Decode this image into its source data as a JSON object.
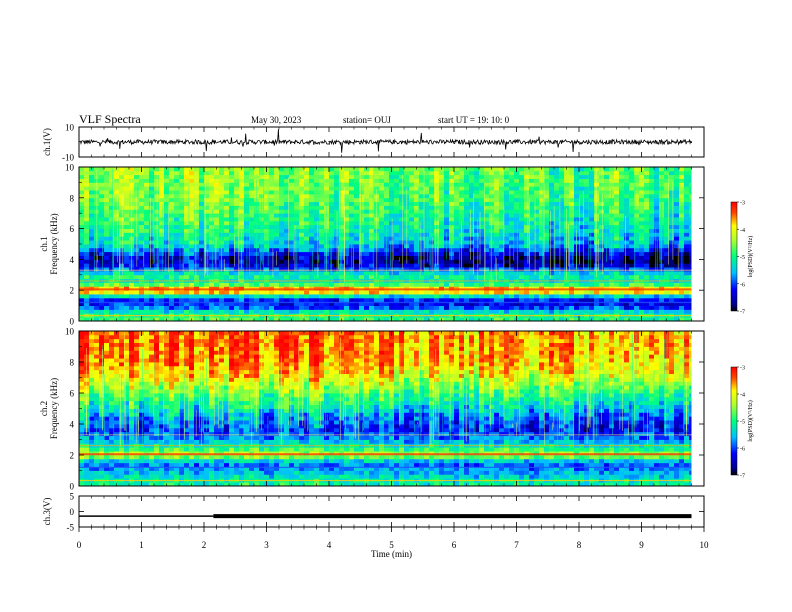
{
  "header": {
    "title": "VLF Spectra",
    "date": "May 30, 2023",
    "station": "station= OUJ",
    "start": "start  UT  =   19: 10: 0"
  },
  "chart_data": [
    {
      "type": "line",
      "panel": "ch1-waveform",
      "ylabel": "ch.1(V)",
      "ylim": [
        -10,
        10
      ],
      "y_ticks": [
        "10",
        "-10"
      ],
      "x": [
        0,
        0.5,
        1,
        1.5,
        2,
        2.5,
        3,
        3.5,
        4,
        4.5,
        5,
        5.5,
        6,
        6.5,
        7,
        7.5,
        8,
        8.5,
        9,
        9.5,
        9.8
      ],
      "y": [
        0,
        0.3,
        -0.2,
        0.4,
        -0.1,
        0.2,
        0.1,
        -0.3,
        0.2,
        0.4,
        -0.2,
        0.1,
        0.3,
        -0.1,
        0.2,
        0.0,
        0.3,
        -0.2,
        0.1,
        0.2,
        0.0
      ],
      "color": "#000000"
    },
    {
      "type": "heatmap",
      "panel": "ch1-spectrogram",
      "ylabel_line1": "ch.1",
      "ylabel_line2": "Frequency (kHz)",
      "ylim": [
        0,
        10
      ],
      "y_ticks": [
        "0",
        "2",
        "4",
        "6",
        "8",
        "10"
      ],
      "xlim": [
        0,
        10
      ],
      "colorbar_label": "log(PSD)(V²/Hz)",
      "colorbar_ticks": [
        "-3",
        "-4",
        "-5",
        "-6",
        "-7"
      ],
      "zlim": [
        -7,
        -3
      ],
      "freq_profile_kHz": [
        0,
        0.5,
        1,
        1.5,
        2,
        2.5,
        3,
        3.5,
        4,
        4.5,
        5,
        6,
        7,
        8,
        9,
        10
      ],
      "log_psd_typical": [
        -4.8,
        -5.0,
        -6.2,
        -6.0,
        -3.2,
        -5.2,
        -5.0,
        -6.2,
        -6.6,
        -6.0,
        -5.3,
        -5.0,
        -4.8,
        -4.6,
        -4.5,
        -4.5
      ]
    },
    {
      "type": "heatmap",
      "panel": "ch2-spectrogram",
      "ylabel_line1": "ch.2",
      "ylabel_line2": "Frequency (kHz)",
      "ylim": [
        0,
        10
      ],
      "y_ticks": [
        "0",
        "2",
        "4",
        "6",
        "8",
        "10"
      ],
      "xlim": [
        0,
        10
      ],
      "colorbar_label": "log(PSD)(V²/Hz)",
      "colorbar_ticks": [
        "-3",
        "-4",
        "-5",
        "-6",
        "-7"
      ],
      "zlim": [
        -7,
        -3
      ],
      "freq_profile_kHz": [
        0,
        0.5,
        1,
        1.5,
        2,
        2.5,
        3,
        3.5,
        4,
        4.5,
        5,
        6,
        7,
        8,
        9,
        10
      ],
      "log_psd_typical": [
        -5.0,
        -5.2,
        -5.6,
        -5.8,
        -4.2,
        -5.0,
        -5.6,
        -6.0,
        -5.8,
        -5.6,
        -5.2,
        -4.6,
        -3.9,
        -3.5,
        -3.4,
        -3.4
      ]
    },
    {
      "type": "line",
      "panel": "ch3-level",
      "ylabel": "ch.3(V)",
      "ylim": [
        -5,
        5
      ],
      "y_ticks": [
        "5",
        "0",
        "-5"
      ],
      "xlim": [
        0,
        10
      ],
      "x_ticks": [
        "0",
        "1",
        "2",
        "3",
        "4",
        "5",
        "6",
        "7",
        "8",
        "9",
        "10"
      ],
      "xlabel": "Time  (min)",
      "x": [
        0,
        2.15,
        2.15,
        9.8
      ],
      "y": [
        -1.5,
        -1.5,
        -1.5,
        -1.5
      ],
      "color": "#000000"
    }
  ]
}
